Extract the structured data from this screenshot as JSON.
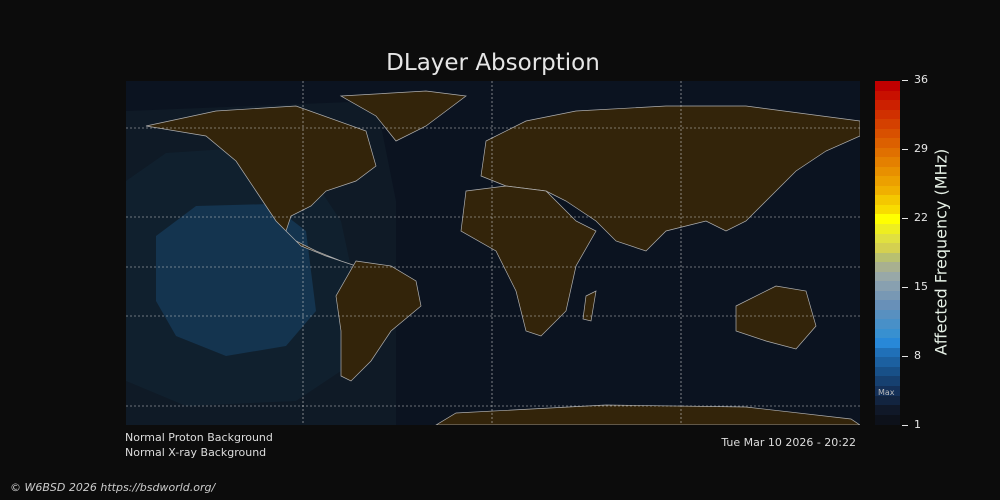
{
  "title": "DLayer Absorption",
  "colorbar": {
    "label": "Affected Frequency (MHz)",
    "ticks": [
      "36",
      "29",
      "22",
      "15",
      "8",
      "1"
    ],
    "min": 1,
    "max": 36,
    "max_marker": "Max",
    "colors": [
      "#c00000",
      "#c81000",
      "#cc2000",
      "#d03000",
      "#d44000",
      "#d85000",
      "#dc6000",
      "#e07000",
      "#e48000",
      "#e89000",
      "#eca000",
      "#f0b000",
      "#f4c800",
      "#f8dc00",
      "#ffff00",
      "#eeee20",
      "#e0e040",
      "#d4d050",
      "#b8c070",
      "#a8b090",
      "#98a8a8",
      "#88a0b0",
      "#7898b4",
      "#6890b8",
      "#5890c0",
      "#4890c8",
      "#3890d0",
      "#2888d8",
      "#2070b8",
      "#1c60a0",
      "#185088",
      "#164070",
      "#143058",
      "#122440",
      "#101828"
    ]
  },
  "map": {
    "ocean": "#0b1320",
    "land": "#33240a",
    "coast": "#b0b0b0",
    "absorption_zones": [
      {
        "level": "low",
        "color": "#10202e"
      },
      {
        "level": "medium",
        "color": "#14344f"
      }
    ]
  },
  "status": {
    "proton": "Normal Proton Background",
    "xray": "Normal X-ray Background",
    "timestamp": "Tue Mar 10 2026 - 20:22"
  },
  "footer": {
    "copyright": "© W6BSD 2026 https://bsdworld.org/"
  }
}
